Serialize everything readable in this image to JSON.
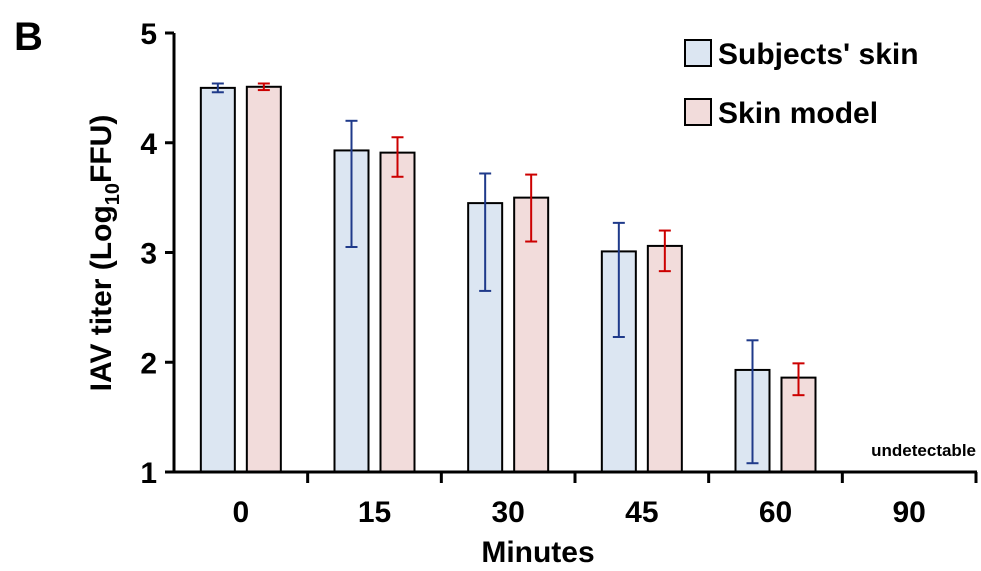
{
  "panel_label": "B",
  "chart_data": {
    "type": "bar",
    "categories": [
      "0",
      "15",
      "30",
      "45",
      "60",
      "90"
    ],
    "xlabel": "Minutes",
    "ylabel_main": "IAV titer (Log",
    "ylabel_sub": "10",
    "ylabel_tail": "FFU)",
    "ylim": [
      1,
      5
    ],
    "yticks": [
      "1",
      "2",
      "3",
      "4",
      "5"
    ],
    "legend_position": "top-right",
    "annotation": "undetectable",
    "series": [
      {
        "name": "Subjects' skin",
        "fill": "#dce6f2",
        "error_color": "#1f3a8a",
        "values": [
          4.5,
          3.93,
          3.45,
          3.01,
          1.93,
          null
        ],
        "err_low": [
          0.04,
          0.88,
          0.8,
          0.78,
          0.85,
          null
        ],
        "err_high": [
          0.04,
          0.27,
          0.27,
          0.26,
          0.27,
          null
        ]
      },
      {
        "name": "Skin model",
        "fill": "#f2dcdb",
        "error_color": "#cc0000",
        "values": [
          4.51,
          3.91,
          3.5,
          3.06,
          1.86,
          null
        ],
        "err_low": [
          0.03,
          0.22,
          0.4,
          0.23,
          0.16,
          null
        ],
        "err_high": [
          0.03,
          0.14,
          0.21,
          0.14,
          0.13,
          null
        ]
      }
    ]
  }
}
